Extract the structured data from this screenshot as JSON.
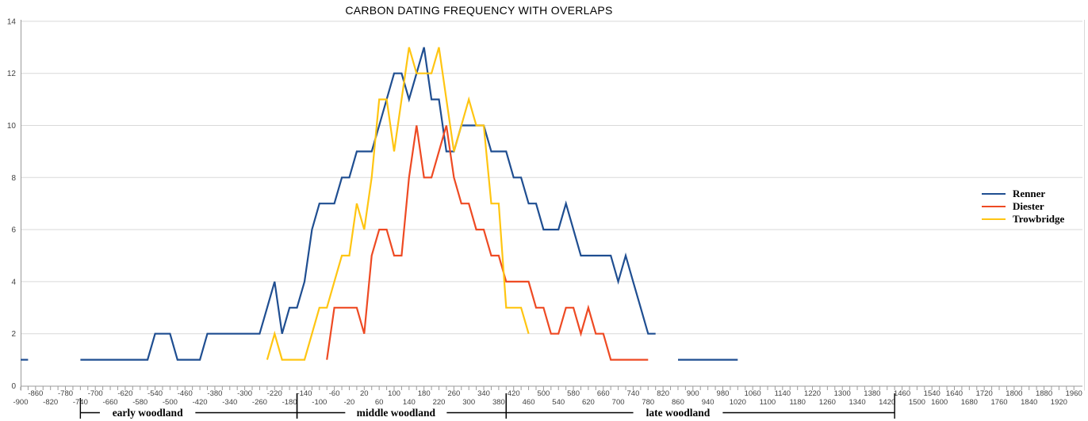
{
  "title": "CARBON DATING FREQUENCY WITH OVERLAPS",
  "colors": {
    "renner": "#1f4e91",
    "diester": "#ee4a23",
    "trowbridge": "#ffc512",
    "gridline": "#d9d9d9",
    "axis": "#9b9b9b",
    "tick_label": "#3f3f3f",
    "bracket": "#000000"
  },
  "legend": {
    "entries": [
      "Renner",
      "Diester",
      "Trowbridge"
    ]
  },
  "chart_data": {
    "type": "line",
    "title": "CARBON DATING FREQUENCY WITH OVERLAPS",
    "xlabel": "",
    "ylabel": "",
    "x_axis": {
      "min": -900,
      "max": 1960,
      "category_step": 20,
      "missing_categories": [
        1560,
        1580
      ],
      "labels_upper": [
        -860,
        -780,
        -700,
        -620,
        -540,
        -460,
        -380,
        -300,
        -220,
        -140,
        -60,
        20,
        100,
        180,
        260,
        340,
        420,
        500,
        580,
        660,
        740,
        820,
        900,
        980,
        1060,
        1140,
        1220,
        1300,
        1380,
        1460,
        1540,
        1640,
        1720,
        1800,
        1880,
        1960
      ],
      "labels_lower": [
        -900,
        -820,
        -740,
        -660,
        -580,
        -500,
        -420,
        -340,
        -260,
        -180,
        -100,
        -20,
        60,
        140,
        220,
        300,
        380,
        460,
        540,
        620,
        700,
        780,
        860,
        940,
        1020,
        1100,
        1180,
        1260,
        1340,
        1420,
        1500,
        1600,
        1680,
        1760,
        1840,
        1920
      ]
    },
    "y_axis": {
      "min": 0,
      "max": 14,
      "ticks": [
        0,
        2,
        4,
        6,
        8,
        10,
        12,
        14
      ],
      "grid": true
    },
    "legend_position": "right",
    "series": [
      {
        "name": "Renner",
        "color": "#1f4e91",
        "segments": [
          [
            [
              -900,
              1
            ],
            [
              -880,
              1
            ]
          ],
          [
            [
              -740,
              1
            ],
            [
              -720,
              1
            ],
            [
              -700,
              1
            ],
            [
              -680,
              1
            ],
            [
              -660,
              1
            ],
            [
              -640,
              1
            ],
            [
              -620,
              1
            ],
            [
              -600,
              1
            ],
            [
              -580,
              1
            ],
            [
              -560,
              1
            ],
            [
              -540,
              2
            ],
            [
              -520,
              2
            ],
            [
              -500,
              2
            ],
            [
              -480,
              1
            ],
            [
              -460,
              1
            ],
            [
              -440,
              1
            ],
            [
              -420,
              1
            ],
            [
              -400,
              2
            ],
            [
              -380,
              2
            ],
            [
              -360,
              2
            ],
            [
              -340,
              2
            ],
            [
              -320,
              2
            ],
            [
              -300,
              2
            ],
            [
              -280,
              2
            ],
            [
              -260,
              2
            ],
            [
              -240,
              3
            ],
            [
              -220,
              4
            ],
            [
              -200,
              2
            ],
            [
              -180,
              3
            ],
            [
              -160,
              3
            ],
            [
              -140,
              4
            ],
            [
              -120,
              6
            ],
            [
              -100,
              7
            ],
            [
              -80,
              7
            ],
            [
              -60,
              7
            ],
            [
              -40,
              8
            ],
            [
              -20,
              8
            ],
            [
              0,
              9
            ],
            [
              20,
              9
            ],
            [
              40,
              9
            ],
            [
              60,
              10
            ],
            [
              80,
              11
            ],
            [
              100,
              12
            ],
            [
              120,
              12
            ],
            [
              140,
              11
            ],
            [
              160,
              12
            ],
            [
              180,
              13
            ],
            [
              200,
              11
            ],
            [
              220,
              11
            ],
            [
              240,
              9
            ],
            [
              260,
              9
            ],
            [
              280,
              10
            ],
            [
              300,
              10
            ],
            [
              320,
              10
            ],
            [
              340,
              10
            ],
            [
              360,
              9
            ],
            [
              380,
              9
            ],
            [
              400,
              9
            ],
            [
              420,
              8
            ],
            [
              440,
              8
            ],
            [
              460,
              7
            ],
            [
              480,
              7
            ],
            [
              500,
              6
            ],
            [
              520,
              6
            ],
            [
              540,
              6
            ],
            [
              560,
              7
            ],
            [
              580,
              6
            ],
            [
              600,
              5
            ],
            [
              620,
              5
            ],
            [
              640,
              5
            ],
            [
              660,
              5
            ],
            [
              680,
              5
            ],
            [
              700,
              4
            ],
            [
              720,
              5
            ],
            [
              740,
              4
            ],
            [
              760,
              3
            ],
            [
              780,
              2
            ],
            [
              800,
              2
            ]
          ],
          [
            [
              860,
              1
            ],
            [
              880,
              1
            ],
            [
              900,
              1
            ],
            [
              920,
              1
            ],
            [
              940,
              1
            ],
            [
              960,
              1
            ],
            [
              980,
              1
            ],
            [
              1000,
              1
            ],
            [
              1020,
              1
            ]
          ]
        ]
      },
      {
        "name": "Diester",
        "color": "#ee4a23",
        "segments": [
          [
            [
              -80,
              1
            ],
            [
              -60,
              3
            ],
            [
              -40,
              3
            ],
            [
              -20,
              3
            ],
            [
              0,
              3
            ],
            [
              20,
              2
            ],
            [
              40,
              5
            ],
            [
              60,
              6
            ],
            [
              80,
              6
            ],
            [
              100,
              5
            ],
            [
              120,
              5
            ],
            [
              140,
              8
            ],
            [
              160,
              10
            ],
            [
              180,
              8
            ],
            [
              200,
              8
            ],
            [
              220,
              9
            ],
            [
              240,
              10
            ],
            [
              260,
              8
            ],
            [
              280,
              7
            ],
            [
              300,
              7
            ],
            [
              320,
              6
            ],
            [
              340,
              6
            ],
            [
              360,
              5
            ],
            [
              380,
              5
            ],
            [
              400,
              4
            ],
            [
              420,
              4
            ],
            [
              440,
              4
            ],
            [
              460,
              4
            ],
            [
              480,
              3
            ],
            [
              500,
              3
            ],
            [
              520,
              2
            ],
            [
              540,
              2
            ],
            [
              560,
              3
            ],
            [
              580,
              3
            ],
            [
              600,
              2
            ],
            [
              620,
              3
            ],
            [
              640,
              2
            ],
            [
              660,
              2
            ],
            [
              680,
              1
            ],
            [
              700,
              1
            ],
            [
              720,
              1
            ],
            [
              740,
              1
            ],
            [
              760,
              1
            ],
            [
              780,
              1
            ]
          ]
        ]
      },
      {
        "name": "Trowbridge",
        "color": "#ffc512",
        "segments": [
          [
            [
              -240,
              1
            ],
            [
              -220,
              2
            ],
            [
              -200,
              1
            ],
            [
              -180,
              1
            ],
            [
              -160,
              1
            ],
            [
              -140,
              1
            ],
            [
              -120,
              2
            ],
            [
              -100,
              3
            ],
            [
              -80,
              3
            ],
            [
              -60,
              4
            ],
            [
              -40,
              5
            ],
            [
              -20,
              5
            ],
            [
              0,
              7
            ],
            [
              20,
              6
            ],
            [
              40,
              8
            ],
            [
              60,
              11
            ],
            [
              80,
              11
            ],
            [
              100,
              9
            ],
            [
              120,
              11
            ],
            [
              140,
              13
            ],
            [
              160,
              12
            ],
            [
              180,
              12
            ],
            [
              200,
              12
            ],
            [
              220,
              13
            ],
            [
              240,
              11
            ],
            [
              260,
              9
            ],
            [
              280,
              10
            ],
            [
              300,
              11
            ],
            [
              320,
              10
            ],
            [
              340,
              10
            ],
            [
              360,
              7
            ],
            [
              380,
              7
            ],
            [
              400,
              3
            ],
            [
              420,
              3
            ],
            [
              440,
              3
            ],
            [
              460,
              2
            ]
          ]
        ]
      }
    ],
    "periods": [
      {
        "label": "early woodland",
        "from": -740,
        "to": -160,
        "label_center": -560
      },
      {
        "label": "middle woodland",
        "from": -160,
        "to": 400,
        "label_center": 105
      },
      {
        "label": "late woodland",
        "from": 400,
        "to": 1440,
        "label_center": 860
      }
    ]
  }
}
